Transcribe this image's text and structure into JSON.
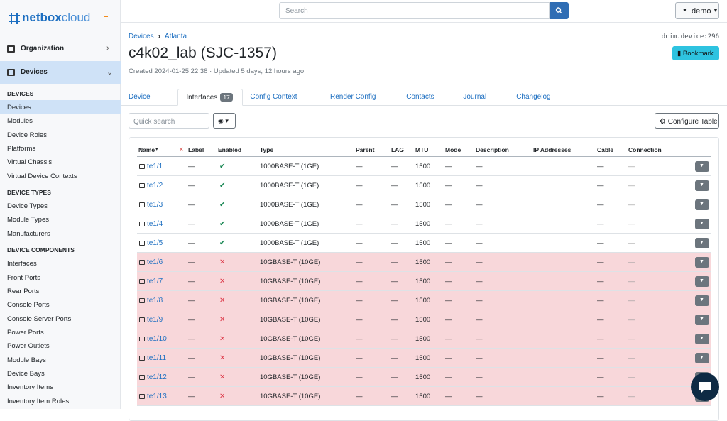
{
  "logo": {
    "primary": "netbox",
    "secondary": "cloud"
  },
  "search": {
    "placeholder": "Search"
  },
  "user": "demo",
  "sidebar": {
    "menus": [
      {
        "label": "Organization",
        "active": false
      },
      {
        "label": "Devices",
        "active": true
      }
    ],
    "groups": [
      {
        "heading": "DEVICES",
        "items": [
          "Devices",
          "Modules",
          "Device Roles",
          "Platforms",
          "Virtual Chassis",
          "Virtual Device Contexts"
        ],
        "active": 0
      },
      {
        "heading": "DEVICE TYPES",
        "items": [
          "Device Types",
          "Module Types",
          "Manufacturers"
        ],
        "active": null
      },
      {
        "heading": "DEVICE COMPONENTS",
        "items": [
          "Interfaces",
          "Front Ports",
          "Rear Ports",
          "Console Ports",
          "Console Server Ports",
          "Power Ports",
          "Power Outlets",
          "Module Bays",
          "Device Bays",
          "Inventory Items",
          "Inventory Item Roles"
        ],
        "active": null
      }
    ]
  },
  "breadcrumb": [
    "Devices",
    "Atlanta"
  ],
  "object_id": "dcim.device:296",
  "title": "c4k02_lab (SJC-1357)",
  "meta": "Created 2024-01-25 22:38 · Updated 5 days, 12 hours ago",
  "bookmark": "Bookmark",
  "tabs": [
    {
      "label": "Device"
    },
    {
      "label": "Interfaces",
      "badge": "17",
      "active": true
    },
    {
      "label": "Config Context"
    },
    {
      "label": "Render Config"
    },
    {
      "label": "Contacts"
    },
    {
      "label": "Journal"
    },
    {
      "label": "Changelog"
    }
  ],
  "quick_search": "Quick search",
  "configure_table": "Configure Table",
  "table": {
    "columns": [
      "Name",
      "Label",
      "Enabled",
      "Type",
      "Parent",
      "LAG",
      "MTU",
      "Mode",
      "Description",
      "IP Addresses",
      "Cable",
      "Connection"
    ],
    "rows": [
      [
        "te1/1",
        "—",
        true,
        "1000BASE-T (1GE)",
        "—",
        "—",
        "1500",
        "—",
        "—",
        null,
        "—",
        "—"
      ],
      [
        "te1/2",
        "—",
        true,
        "1000BASE-T (1GE)",
        "—",
        "—",
        "1500",
        "—",
        "—",
        null,
        "—",
        "—"
      ],
      [
        "te1/3",
        "—",
        true,
        "1000BASE-T (1GE)",
        "—",
        "—",
        "1500",
        "—",
        "—",
        null,
        "—",
        "—"
      ],
      [
        "te1/4",
        "—",
        true,
        "1000BASE-T (1GE)",
        "—",
        "—",
        "1500",
        "—",
        "—",
        null,
        "—",
        "—"
      ],
      [
        "te1/5",
        "—",
        true,
        "1000BASE-T (1GE)",
        "—",
        "—",
        "1500",
        "—",
        "—",
        null,
        "—",
        "—"
      ],
      [
        "te1/6",
        "—",
        false,
        "10GBASE-T (10GE)",
        "—",
        "—",
        "1500",
        "—",
        "—",
        null,
        "—",
        "—"
      ],
      [
        "te1/7",
        "—",
        false,
        "10GBASE-T (10GE)",
        "—",
        "—",
        "1500",
        "—",
        "—",
        null,
        "—",
        "—"
      ],
      [
        "te1/8",
        "—",
        false,
        "10GBASE-T (10GE)",
        "—",
        "—",
        "1500",
        "—",
        "—",
        null,
        "—",
        "—"
      ],
      [
        "te1/9",
        "—",
        false,
        "10GBASE-T (10GE)",
        "—",
        "—",
        "1500",
        "—",
        "—",
        null,
        "—",
        "—"
      ],
      [
        "te1/10",
        "—",
        false,
        "10GBASE-T (10GE)",
        "—",
        "—",
        "1500",
        "—",
        "—",
        null,
        "—",
        "—"
      ],
      [
        "te1/11",
        "—",
        false,
        "10GBASE-T (10GE)",
        "—",
        "—",
        "1500",
        "—",
        "—",
        null,
        "—",
        "—"
      ],
      [
        "te1/12",
        "—",
        false,
        "10GBASE-T (10GE)",
        "—",
        "—",
        "1500",
        "—",
        "—",
        null,
        "—",
        "—"
      ],
      [
        "te1/13",
        "—",
        false,
        "10GBASE-T (10GE)",
        "—",
        "—",
        "1500",
        "—",
        "—",
        null,
        "—",
        "—"
      ]
    ]
  }
}
